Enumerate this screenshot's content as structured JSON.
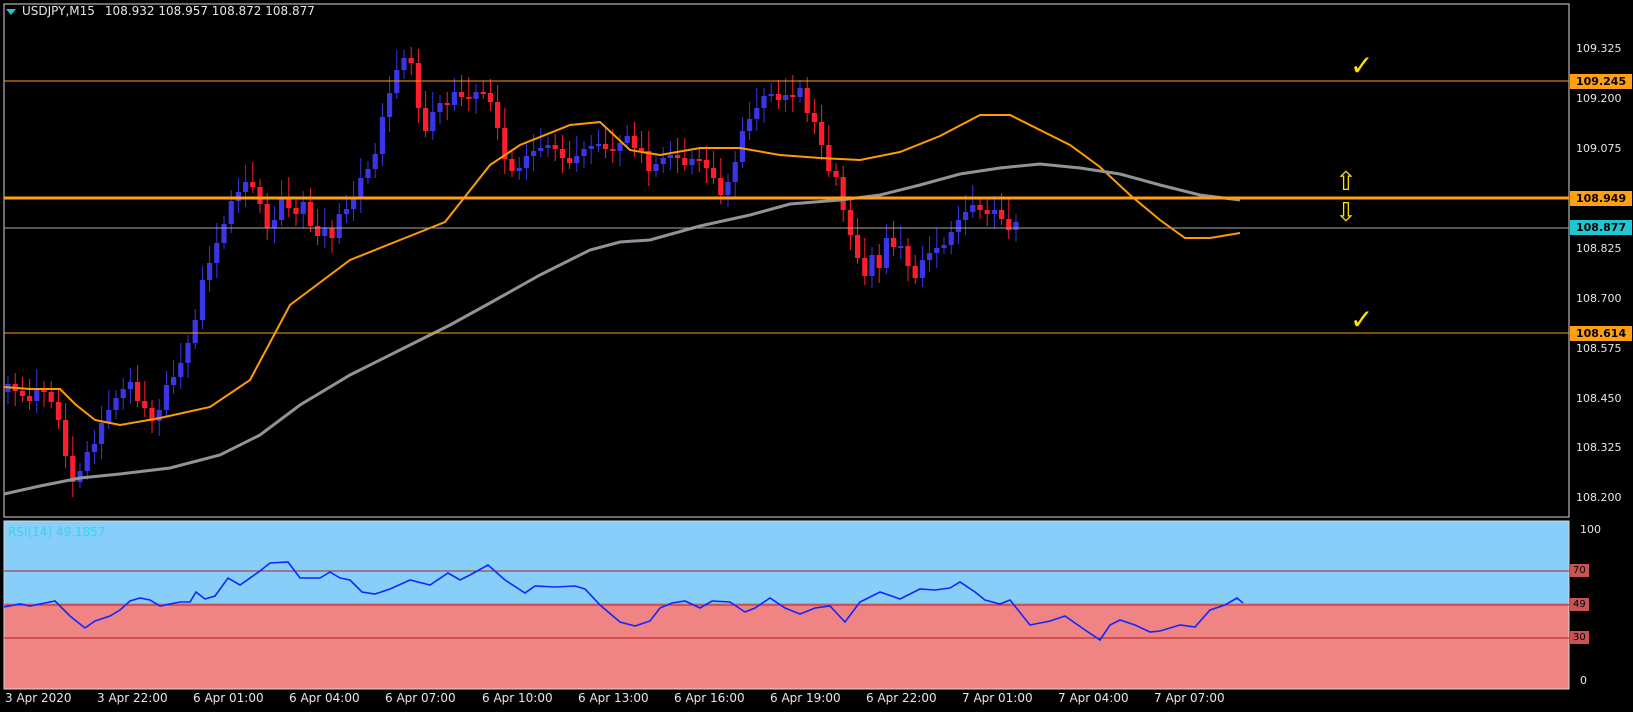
{
  "header": {
    "symbol": "USDJPY,M15",
    "ohlc": "108.932 108.957 108.872 108.877"
  },
  "price_axis": {
    "ticks": [
      "109.325",
      "109.200",
      "109.075",
      "108.825",
      "108.700",
      "108.575",
      "108.450",
      "108.325",
      "108.200"
    ],
    "badges": {
      "resistance": "109.245",
      "pivot": "108.949",
      "current": "108.877",
      "support": "108.614"
    }
  },
  "rsi": {
    "label": "RSI(14) 49.1857",
    "axis_ticks": [
      "100",
      "0"
    ],
    "levels": {
      "upper": "70",
      "current": "49",
      "lower": "30"
    }
  },
  "x_axis": {
    "labels": [
      "3 Apr 2020",
      "3 Apr 22:00",
      "6 Apr 01:00",
      "6 Apr 04:00",
      "6 Apr 07:00",
      "6 Apr 10:00",
      "6 Apr 13:00",
      "6 Apr 16:00",
      "6 Apr 19:00",
      "6 Apr 22:00",
      "7 Apr 01:00",
      "7 Apr 04:00",
      "7 Apr 07:00"
    ]
  },
  "annotations": {
    "check_top": "✓",
    "check_bottom": "✓",
    "arrow_up": "⇧",
    "arrow_down": "⇩"
  },
  "colors": {
    "background": "#000000",
    "bull_candle": "#3b35e8",
    "bear_candle": "#ff1d2d",
    "fast_ma": "#ff9d00",
    "slow_ma": "#8f949a",
    "horizontal_line": "#ff9f12",
    "rsi_upper_fill": "#87cff9",
    "rsi_lower_fill": "#f08383",
    "rsi_line": "#1326ff",
    "accent": "#20c7d2",
    "annotation": "#ffe100"
  }
}
